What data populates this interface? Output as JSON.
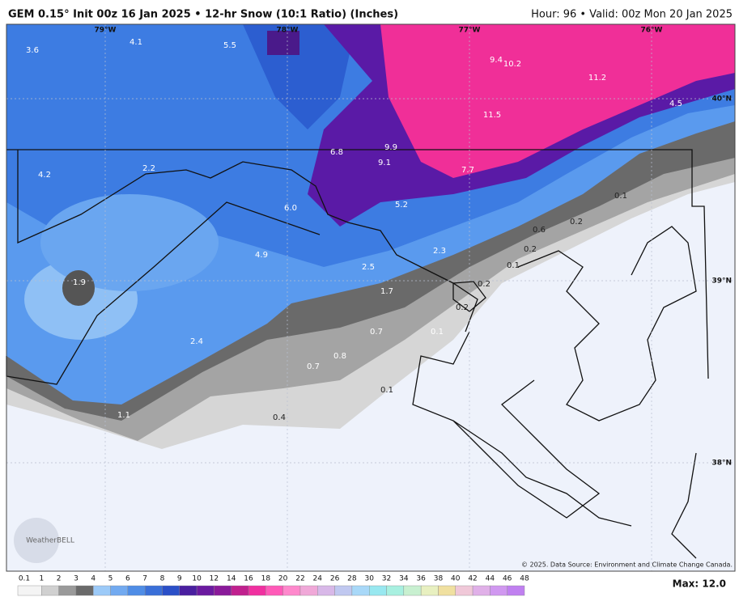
{
  "header": {
    "left": "GEM 0.15° Init 00z 16 Jan 2025 • 12-hr Snow (10:1 Ratio) (Inches)",
    "right": "Hour: 96 • Valid: 00z Mon 20 Jan 2025"
  },
  "map": {
    "lon_labels": [
      "79°W",
      "78°W",
      "77°W",
      "76°W"
    ],
    "lat_labels": [
      "40°N",
      "39°N",
      "38°N"
    ],
    "points": [
      "3.6",
      "4.1",
      "5.5",
      "9.4",
      "10.2",
      "11.2",
      "4.5",
      "11.5",
      "6.8",
      "9.9",
      "9.1",
      "7.7",
      "4.2",
      "2.2",
      "6.0",
      "5.2",
      "0.1",
      "0.2",
      "0.6",
      "0.2",
      "2.3",
      "4.9",
      "2.5",
      "0.1",
      "1.9",
      "1.7",
      "0.2",
      "0.2",
      "0.7",
      "0.1",
      "0.8",
      "2.4",
      "0.7",
      "0.1",
      "1.1",
      "0.4"
    ],
    "credit": "© 2025. Data Source: Environment and Climate Change Canada.",
    "logo": "WeatherBELL"
  },
  "colorbar": {
    "labels": [
      "0.1",
      "1",
      "2",
      "3",
      "4",
      "5",
      "6",
      "7",
      "8",
      "9",
      "10",
      "12",
      "14",
      "16",
      "18",
      "20",
      "22",
      "24",
      "26",
      "28",
      "30",
      "32",
      "34",
      "36",
      "38",
      "40",
      "42",
      "44",
      "46",
      "48"
    ]
  },
  "footer": {
    "max": "Max: 12.0"
  }
}
